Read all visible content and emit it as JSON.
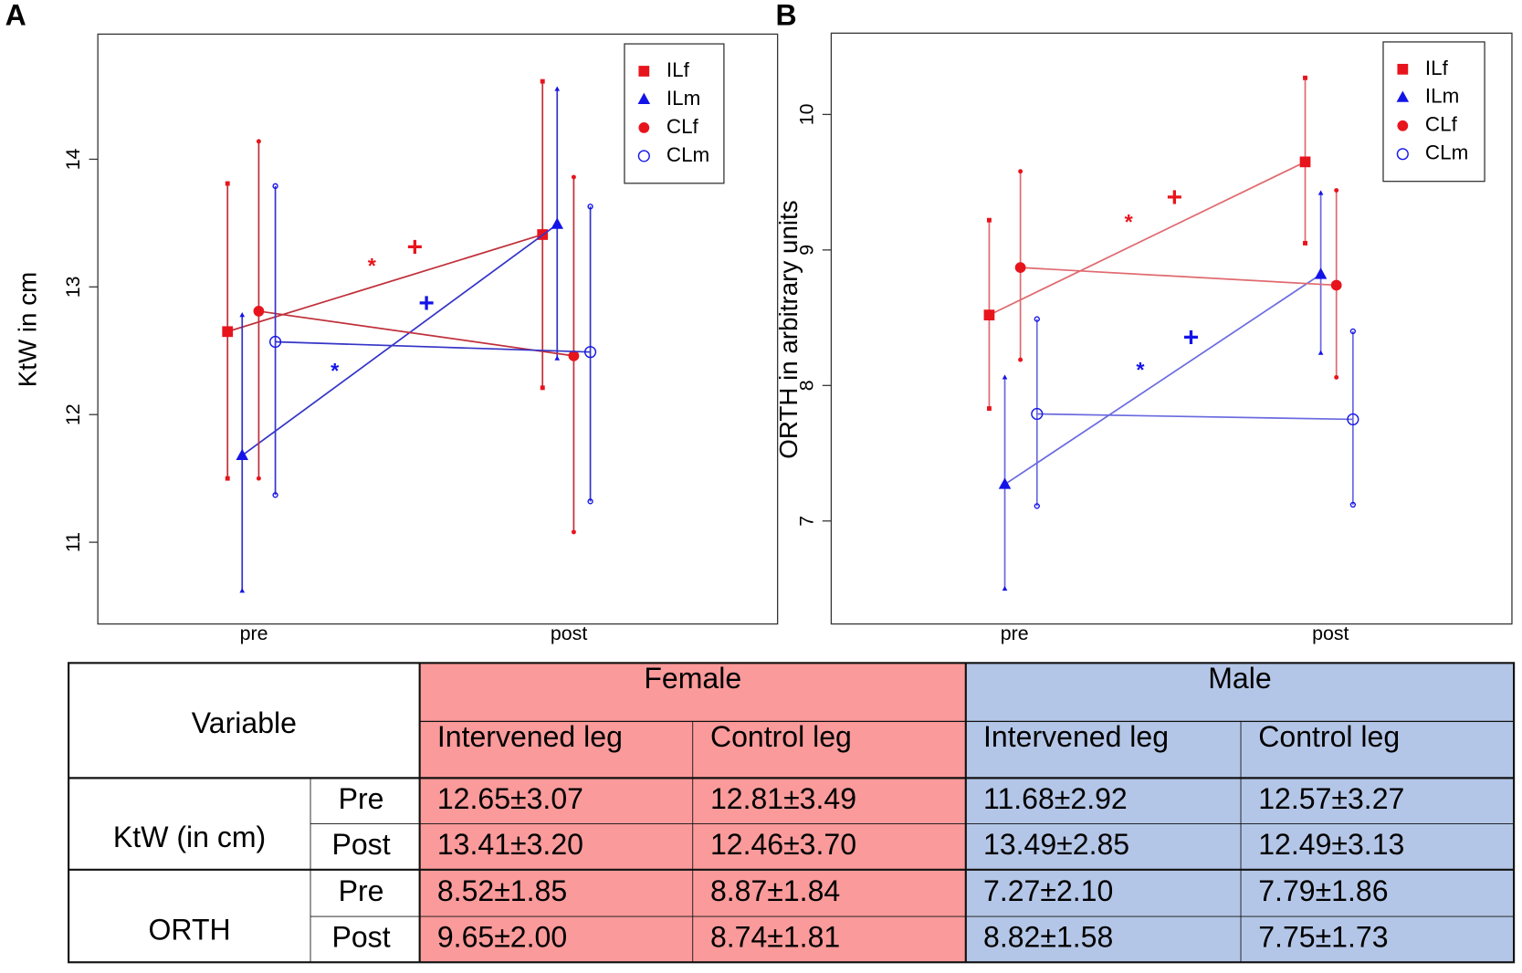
{
  "chart_data": [
    {
      "type": "errorbar",
      "panel_label": "A",
      "y_label": "KtW in cm",
      "categories": [
        "pre",
        "post"
      ],
      "ylim": [
        10.36,
        14.98
      ],
      "yticks": [
        11,
        12,
        13,
        14
      ],
      "legend": "top-right",
      "series": [
        {
          "name": "ILf",
          "color": "#e8141c",
          "line_color": "#c0303a",
          "marker": "square",
          "values": [
            12.65,
            13.41
          ],
          "lower": [
            11.5,
            12.21
          ],
          "upper": [
            13.81,
            14.61
          ]
        },
        {
          "name": "ILm",
          "color": "#1414e8",
          "line_color": "#3434c8",
          "marker": "triangle",
          "values": [
            11.68,
            13.49
          ],
          "lower": [
            10.62,
            12.44
          ],
          "upper": [
            12.78,
            14.55
          ]
        },
        {
          "name": "CLf",
          "color": "#e8141c",
          "line_color": "#c0303a",
          "marker": "circle",
          "values": [
            12.81,
            12.46
          ],
          "lower": [
            11.5,
            11.08
          ],
          "upper": [
            14.14,
            13.86
          ]
        },
        {
          "name": "CLm",
          "color": "#1414e8",
          "line_color": "#3434c8",
          "marker": "open-circle",
          "values": [
            12.57,
            12.49
          ],
          "lower": [
            11.37,
            11.32
          ],
          "upper": [
            13.79,
            13.63
          ]
        }
      ],
      "annotations": [
        {
          "text": "*",
          "color": "#e8141c"
        },
        {
          "text": "+",
          "color": "#e8141c"
        },
        {
          "text": "+",
          "color": "#1414e8"
        },
        {
          "text": "*",
          "color": "#1414e8"
        }
      ]
    },
    {
      "type": "errorbar",
      "panel_label": "B",
      "y_label": "ORTH in arbitrary units",
      "categories": [
        "pre",
        "post"
      ],
      "ylim": [
        6.24,
        10.6
      ],
      "yticks": [
        7,
        8,
        9,
        10
      ],
      "legend": "top-right",
      "series": [
        {
          "name": "ILf",
          "color": "#e8141c",
          "line_color": "#e06a70",
          "marker": "square",
          "values": [
            8.52,
            9.65
          ],
          "lower": [
            7.83,
            9.05
          ],
          "upper": [
            9.22,
            10.27
          ]
        },
        {
          "name": "ILm",
          "color": "#1414e8",
          "line_color": "#6a6ae0",
          "marker": "triangle",
          "values": [
            7.27,
            8.82
          ],
          "lower": [
            6.5,
            8.24
          ],
          "upper": [
            8.06,
            9.42
          ]
        },
        {
          "name": "CLf",
          "color": "#e8141c",
          "line_color": "#e06a70",
          "marker": "circle",
          "values": [
            8.87,
            8.74
          ],
          "lower": [
            8.19,
            8.06
          ],
          "upper": [
            9.58,
            9.44
          ]
        },
        {
          "name": "CLm",
          "color": "#1414e8",
          "line_color": "#6a6ae0",
          "marker": "open-circle",
          "values": [
            7.79,
            7.75
          ],
          "lower": [
            7.11,
            7.12
          ],
          "upper": [
            8.49,
            8.4
          ]
        }
      ],
      "annotations": [
        {
          "text": "*",
          "color": "#e8141c"
        },
        {
          "text": "+",
          "color": "#e8141c"
        },
        {
          "text": "+",
          "color": "#1414e8"
        },
        {
          "text": "*",
          "color": "#1414e8"
        }
      ]
    }
  ],
  "table": {
    "variable_header": "Variable",
    "groups": [
      {
        "name": "Female",
        "color": "#fa9a9a"
      },
      {
        "name": "Male",
        "color": "#b4c6e7"
      }
    ],
    "subheaders": [
      "Intervened leg",
      "Control leg",
      "Intervened leg",
      "Control leg"
    ],
    "variables": [
      "KtW (in cm)",
      "ORTH"
    ],
    "rows": [
      {
        "time": "Pre",
        "cells": [
          "12.65±3.07",
          "12.81±3.49",
          "11.68±2.92",
          "12.57±3.27"
        ]
      },
      {
        "time": "Post",
        "cells": [
          "13.41±3.20",
          "12.46±3.70",
          "13.49±2.85",
          "12.49±3.13"
        ]
      },
      {
        "time": "Pre",
        "cells": [
          "8.52±1.85",
          "8.87±1.84",
          "7.27±2.10",
          "7.79±1.86"
        ]
      },
      {
        "time": "Post",
        "cells": [
          "9.65±2.00",
          "8.74±1.81",
          "8.82±1.58",
          "7.75±1.73"
        ]
      }
    ]
  }
}
